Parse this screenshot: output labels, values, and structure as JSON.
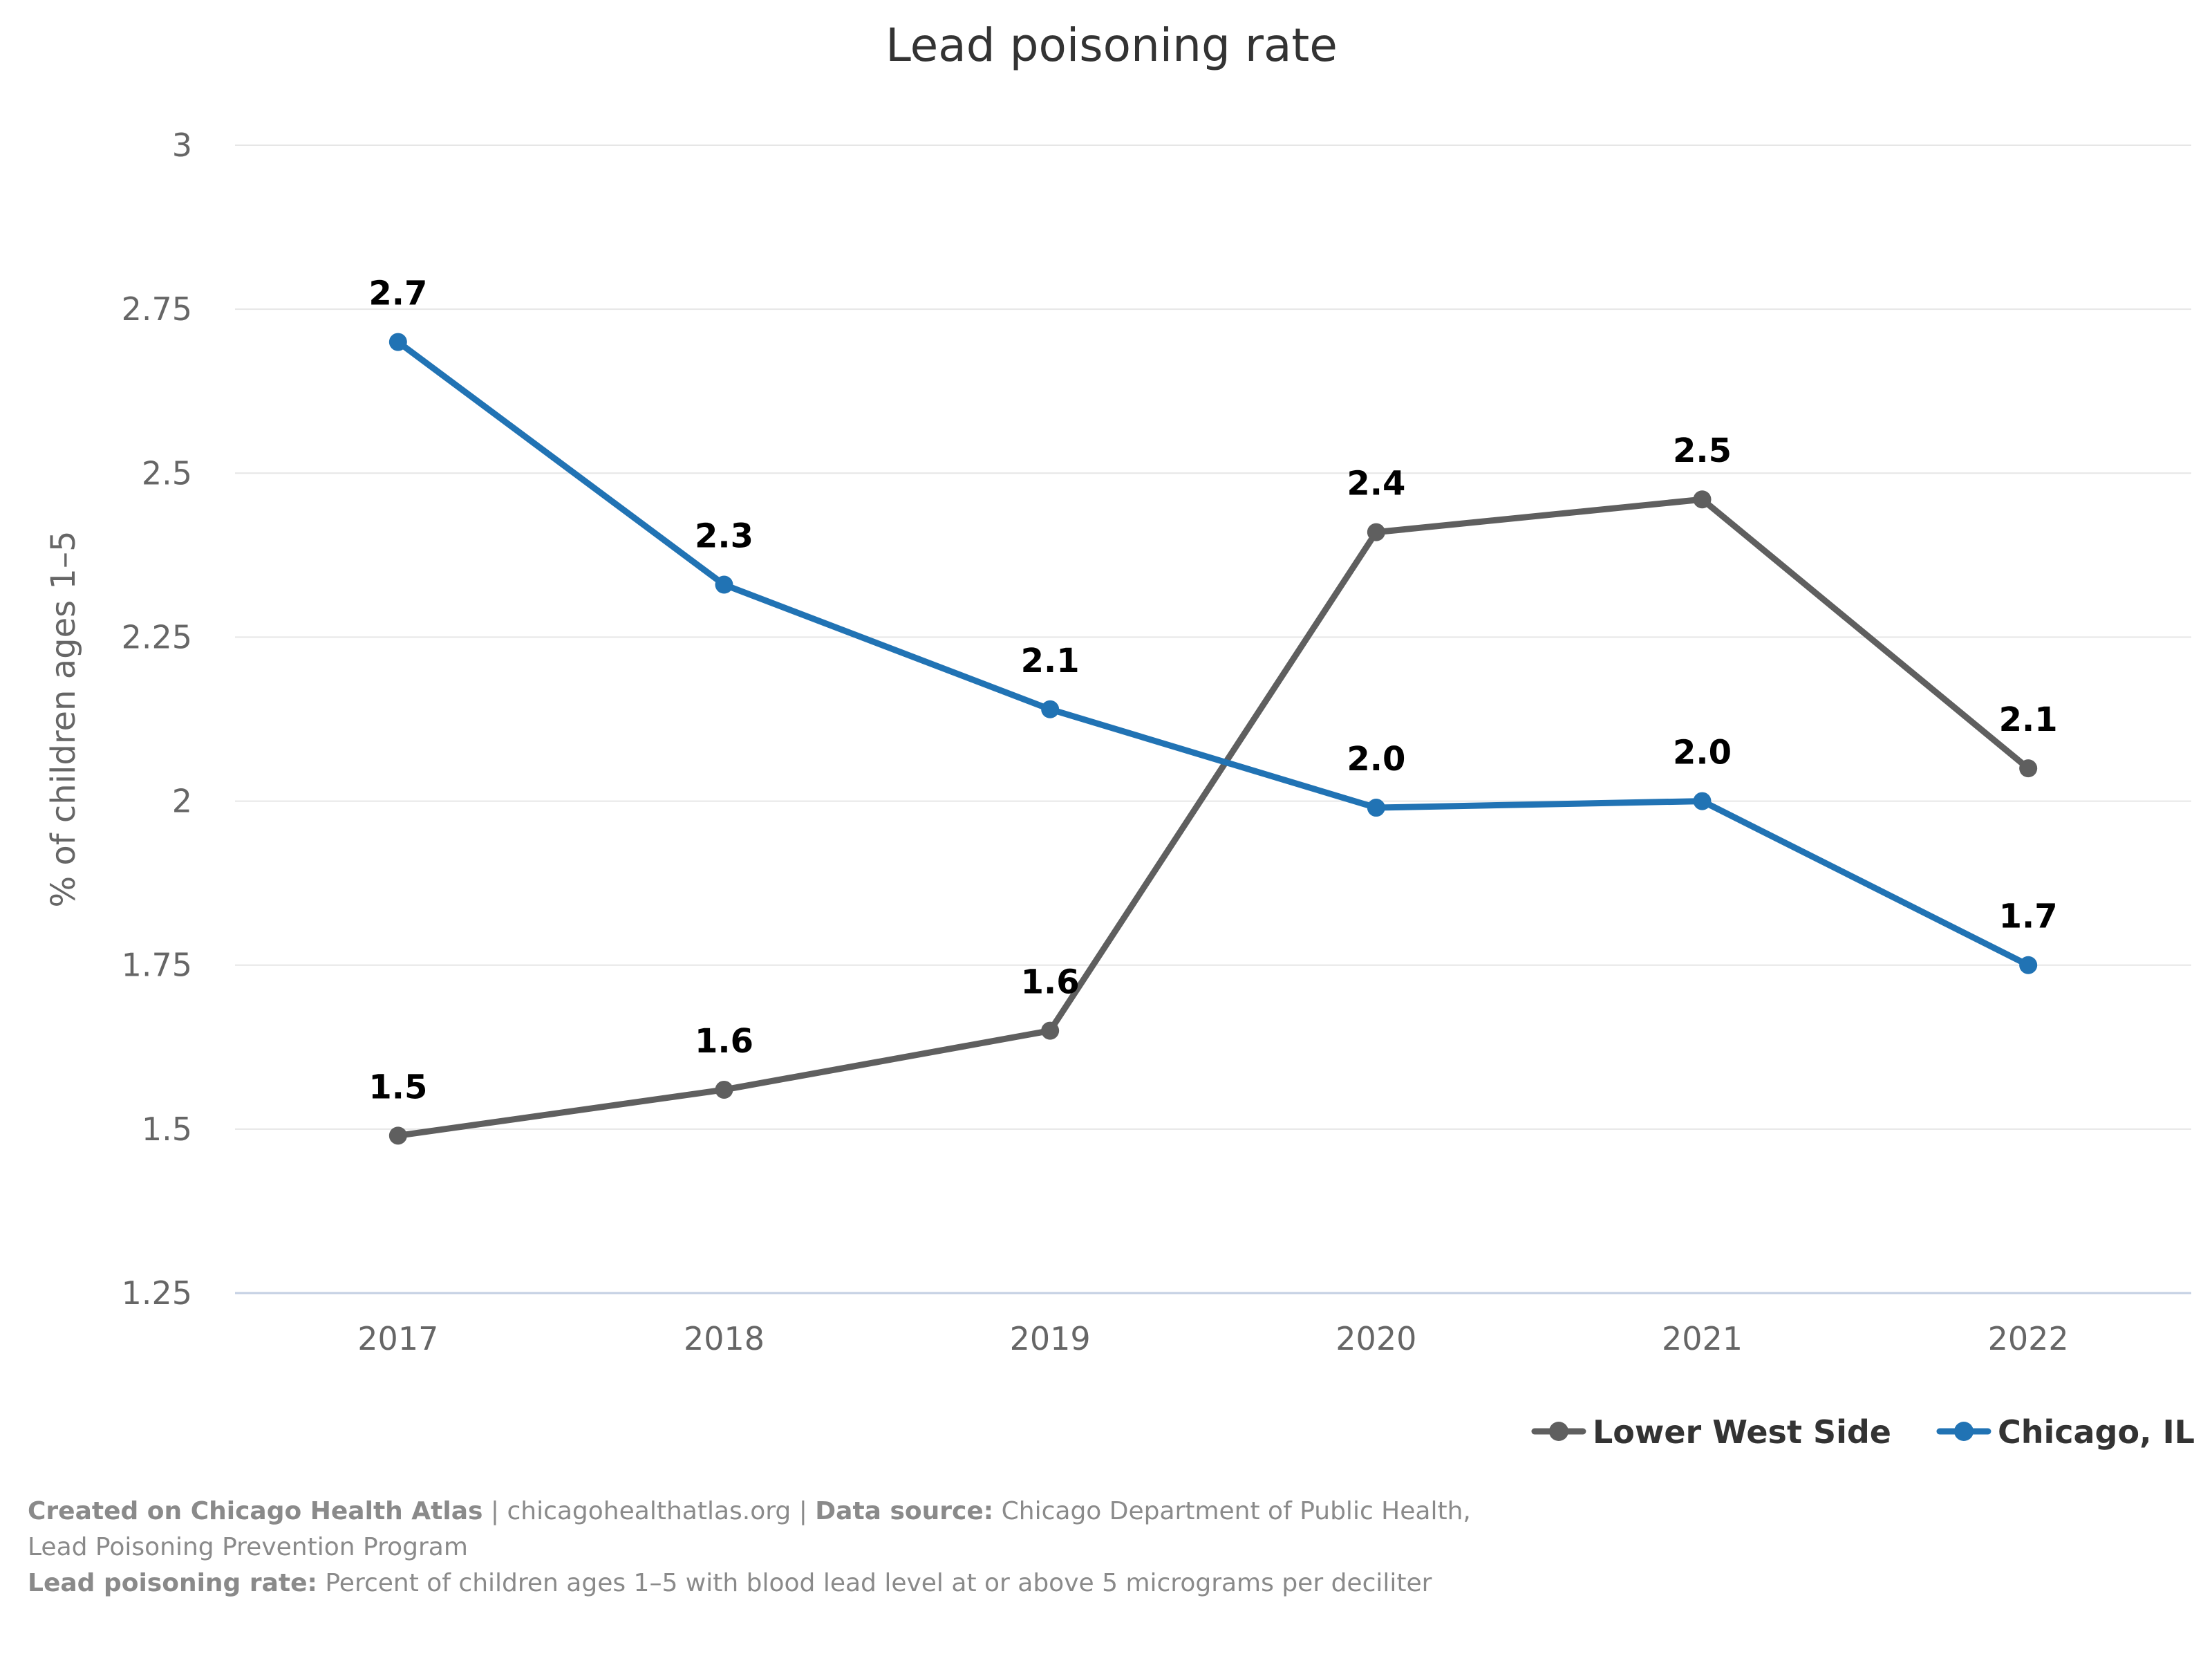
{
  "chart_data": {
    "type": "line",
    "title": "Lead poisoning rate",
    "ylabel": "% of children ages 1–5",
    "xlabel": "",
    "categories": [
      "2017",
      "2018",
      "2019",
      "2020",
      "2021",
      "2022"
    ],
    "ylim": [
      1.25,
      3
    ],
    "yticks": [
      1.25,
      1.5,
      1.75,
      2,
      2.25,
      2.5,
      2.75,
      3
    ],
    "ytick_labels": [
      "1.25",
      "1.5",
      "1.75",
      "2",
      "2.25",
      "2.5",
      "2.75",
      "3"
    ],
    "grid": true,
    "legend_position": "bottom-right",
    "series": [
      {
        "name": "Lower West Side",
        "color": "#5f5f5f",
        "values": [
          1.49,
          1.56,
          1.65,
          2.41,
          2.46,
          2.05
        ],
        "labels": [
          "1.5",
          "1.6",
          "1.6",
          "2.4",
          "2.5",
          "2.1"
        ]
      },
      {
        "name": "Chicago, IL",
        "color": "#2173b4",
        "values": [
          2.7,
          2.33,
          2.14,
          1.99,
          2.0,
          1.75
        ],
        "labels": [
          "2.7",
          "2.3",
          "2.1",
          "2.0",
          "2.0",
          "1.7"
        ]
      }
    ]
  },
  "footer": {
    "created_label": "Created on Chicago Health Atlas",
    "site": " | chicagohealthatlas.org | ",
    "source_label": "Data source:",
    "source_text": " Chicago Department of Public Health, Lead Poisoning Prevention Program",
    "definition_label": "Lead poisoning rate:",
    "definition_text": " Percent of children ages 1–5 with blood lead level at or above 5 micrograms per deciliter"
  }
}
